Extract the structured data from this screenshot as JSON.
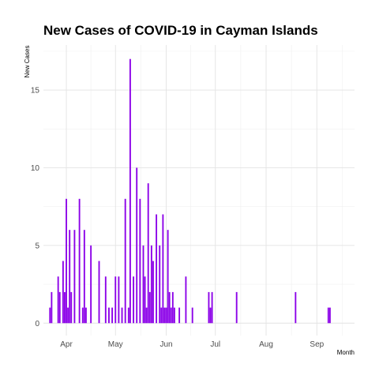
{
  "chart_data": {
    "type": "bar",
    "title": "New Cases of COVID-19 in Cayman Islands",
    "xlabel": "Month",
    "ylabel": "New Cases",
    "x_ticks": [
      "Apr",
      "May",
      "Jun",
      "Jul",
      "Aug",
      "Sep"
    ],
    "y_ticks": [
      0,
      5,
      10,
      15
    ],
    "ylim": [
      -0.8,
      17.9
    ],
    "xlim": [
      "2020-03-18",
      "2020-09-24"
    ],
    "grid": true,
    "legend": "none",
    "bar_color": "#8B00E8",
    "series": [
      {
        "dates": [
          "2020-03-22",
          "2020-03-23",
          "2020-03-27",
          "2020-03-28",
          "2020-03-30",
          "2020-03-31",
          "2020-04-01",
          "2020-04-02",
          "2020-04-03",
          "2020-04-04",
          "2020-04-06",
          "2020-04-09",
          "2020-04-11",
          "2020-04-12",
          "2020-04-13",
          "2020-04-16",
          "2020-04-21",
          "2020-04-25",
          "2020-04-27",
          "2020-04-29",
          "2020-05-01",
          "2020-05-03",
          "2020-05-05",
          "2020-05-07",
          "2020-05-09",
          "2020-05-10",
          "2020-05-12",
          "2020-05-14",
          "2020-05-16",
          "2020-05-18",
          "2020-05-19",
          "2020-05-20",
          "2020-05-21",
          "2020-05-22",
          "2020-05-23",
          "2020-05-24",
          "2020-05-26",
          "2020-05-28",
          "2020-05-29",
          "2020-05-30",
          "2020-05-31",
          "2020-06-01",
          "2020-06-02",
          "2020-06-03",
          "2020-06-04",
          "2020-06-05",
          "2020-06-06",
          "2020-06-09",
          "2020-06-13",
          "2020-06-17",
          "2020-06-27",
          "2020-06-28",
          "2020-06-29",
          "2020-07-14",
          "2020-08-19",
          "2020-09-08",
          "2020-09-09"
        ],
        "values": [
          1,
          2,
          3,
          2,
          4,
          2,
          8,
          1,
          6,
          2,
          6,
          8,
          1,
          6,
          1,
          5,
          4,
          3,
          1,
          1,
          3,
          3,
          1,
          8,
          1,
          17,
          3,
          10,
          8,
          5,
          3,
          1,
          9,
          2,
          5,
          4,
          7,
          5,
          1,
          7,
          1,
          1,
          6,
          2,
          1,
          2,
          1,
          1,
          3,
          1,
          2,
          1,
          2,
          2,
          2,
          1,
          1
        ]
      }
    ]
  }
}
